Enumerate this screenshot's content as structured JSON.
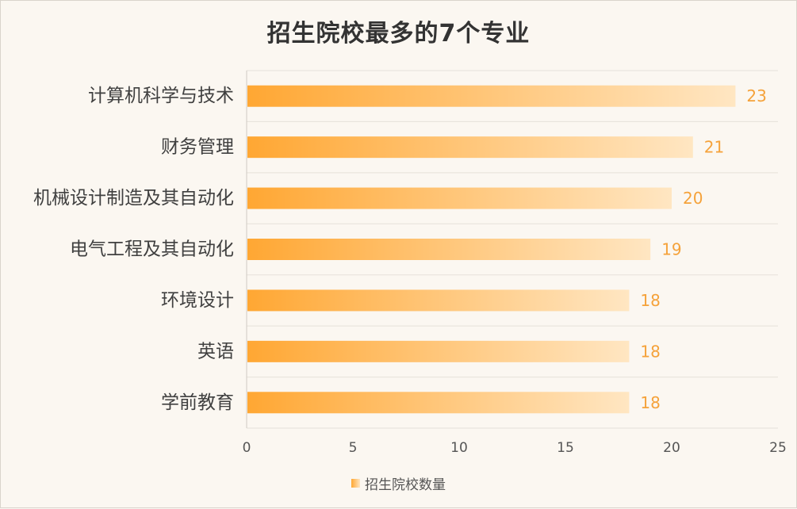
{
  "chart_data": {
    "type": "bar",
    "orientation": "horizontal",
    "title": "招生院校最多的7个专业",
    "categories": [
      "计算机科学与技术",
      "财务管理",
      "机械设计制造及其自动化",
      "电气工程及其自动化",
      "环境设计",
      "英语",
      "学前教育"
    ],
    "series": [
      {
        "name": "招生院校数量",
        "values": [
          23,
          21,
          20,
          19,
          18,
          18,
          18
        ]
      }
    ],
    "xlim": [
      0,
      25
    ],
    "xticks": [
      0,
      5,
      10,
      15,
      20,
      25
    ],
    "grid": "horizontal",
    "legend_position": "bottom",
    "colors": {
      "bar_start": "#ffa733",
      "bar_end": "#ffe6c2",
      "value_label": "#f5a23a"
    }
  }
}
